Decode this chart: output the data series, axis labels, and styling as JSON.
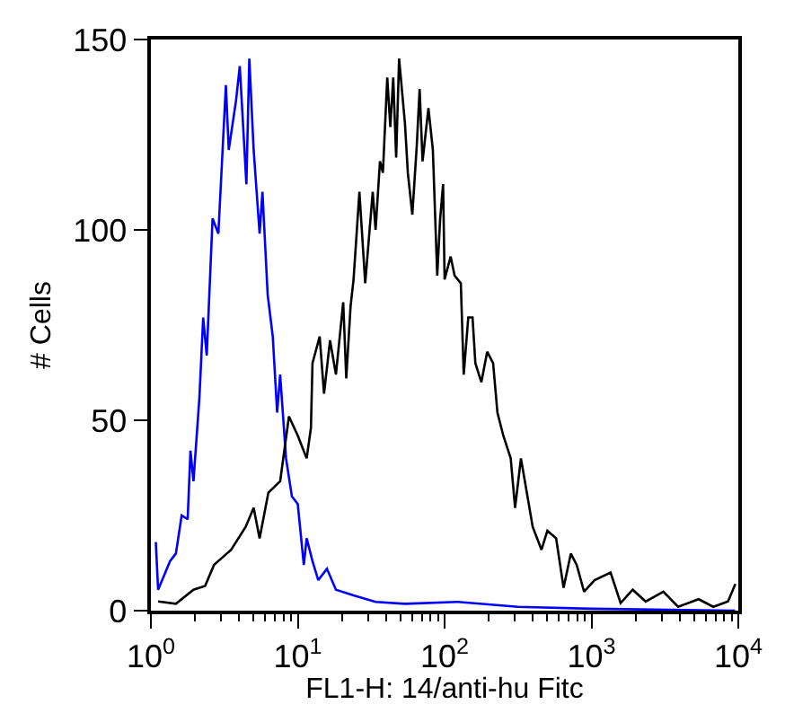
{
  "chart_data": {
    "type": "line",
    "xlabel": "FL1-H: 14/anti-hu Fitc",
    "ylabel": "# Cells",
    "log": "x",
    "marker": "none",
    "line_style": "solid",
    "xlim": [
      1,
      10000
    ],
    "ylim": [
      0,
      150
    ],
    "xticks": [
      {
        "value": 1,
        "label": "10$^{0}$"
      },
      {
        "value": 2,
        "label": null
      },
      {
        "value": 3,
        "label": null
      },
      {
        "value": 4,
        "label": null
      },
      {
        "value": 5,
        "label": null
      },
      {
        "value": 6,
        "label": null
      },
      {
        "value": 7,
        "label": null
      },
      {
        "value": 8,
        "label": null
      },
      {
        "value": 9,
        "label": null
      },
      {
        "value": 10,
        "label": "10$^{1}$"
      },
      {
        "value": 20,
        "label": null
      },
      {
        "value": 30,
        "label": null
      },
      {
        "value": 40,
        "label": null
      },
      {
        "value": 50,
        "label": null
      },
      {
        "value": 60,
        "label": null
      },
      {
        "value": 70,
        "label": null
      },
      {
        "value": 80,
        "label": null
      },
      {
        "value": 90,
        "label": null
      },
      {
        "value": 100,
        "label": "10$^{2}$"
      },
      {
        "value": 200,
        "label": null
      },
      {
        "value": 300,
        "label": null
      },
      {
        "value": 400,
        "label": null
      },
      {
        "value": 500,
        "label": null
      },
      {
        "value": 600,
        "label": null
      },
      {
        "value": 700,
        "label": null
      },
      {
        "value": 800,
        "label": null
      },
      {
        "value": 900,
        "label": null
      },
      {
        "value": 1000,
        "label": "10$^{3}$"
      },
      {
        "value": 2000,
        "label": null
      },
      {
        "value": 3000,
        "label": null
      },
      {
        "value": 4000,
        "label": null
      },
      {
        "value": 5000,
        "label": null
      },
      {
        "value": 6000,
        "label": null
      },
      {
        "value": 7000,
        "label": null
      },
      {
        "value": 8000,
        "label": null
      },
      {
        "value": 9000,
        "label": null
      },
      {
        "value": 10000,
        "label": "10$^{4}$"
      }
    ],
    "yticks": [
      0,
      50,
      100,
      150
    ],
    "series": [
      {
        "color": "#0000ff",
        "x": [
          1.08,
          1.12,
          1.35,
          1.48,
          1.62,
          1.78,
          1.86,
          1.95,
          2.14,
          2.27,
          2.4,
          2.63,
          2.88,
          3.24,
          3.39,
          3.8,
          4.03,
          4.47,
          4.68,
          5.01,
          5.5,
          5.75,
          6.24,
          6.76,
          7.24,
          7.59,
          8.32,
          9.12,
          10,
          11.0,
          11.5,
          12.6,
          13.8,
          15.8,
          18.2,
          24.0,
          33.9,
          53.7,
          123,
          316,
          1000,
          9500
        ],
        "values": [
          18,
          5.5,
          13,
          15,
          25,
          24,
          42,
          34,
          56,
          77,
          67,
          103,
          99,
          138,
          121,
          134,
          143,
          112,
          145,
          121,
          99,
          110,
          83,
          72,
          52,
          62,
          40,
          30,
          28,
          12,
          19,
          13,
          8,
          11,
          5.5,
          4,
          2.3,
          1.8,
          2.3,
          1,
          0.5,
          0
        ]
      },
      {
        "color": "#000000",
        "x": [
          1.12,
          1.48,
          1.95,
          2.34,
          2.69,
          3.52,
          4.42,
          5.01,
          5.5,
          6.31,
          7.59,
          8.71,
          10,
          11.5,
          12.3,
          12.6,
          14.1,
          15.1,
          16.6,
          18.2,
          20.4,
          21.4,
          22.9,
          24.0,
          26.3,
          28.8,
          32.4,
          33.9,
          36.3,
          38.0,
          40.7,
          42.7,
          44.7,
          46.8,
          49.0,
          53.7,
          56.2,
          60.3,
          64.6,
          67.6,
          70.8,
          77.6,
          83.2,
          89.1,
          93.3,
          97.7,
          100,
          110,
          117,
          129,
          135,
          145,
          155,
          162,
          178,
          195,
          214,
          229,
          251,
          282,
          302,
          331,
          363,
          398,
          457,
          501,
          575,
          646,
          724,
          794,
          891,
          1050,
          1350,
          1580,
          1910,
          2340,
          3090,
          3890,
          5370,
          6760,
          8510,
          9550
        ],
        "values": [
          2.4,
          1.8,
          5.5,
          6.5,
          12,
          16,
          22,
          27,
          19,
          31,
          34,
          51,
          46,
          40,
          48,
          65,
          72,
          57,
          71,
          62,
          81,
          61,
          80,
          87,
          110,
          86,
          110,
          100,
          118,
          115,
          140,
          127,
          140,
          119,
          145,
          128,
          115,
          104,
          122,
          137,
          118,
          132,
          121,
          88,
          103,
          112,
          87,
          93,
          88,
          86,
          62,
          77,
          77,
          65,
          60,
          68,
          65,
          52,
          46,
          40,
          27,
          40,
          31,
          22,
          16,
          21,
          19,
          6,
          15,
          12,
          5,
          8,
          10,
          2,
          5.5,
          2.4,
          5,
          1,
          3,
          1,
          2.4,
          7
        ]
      }
    ]
  }
}
